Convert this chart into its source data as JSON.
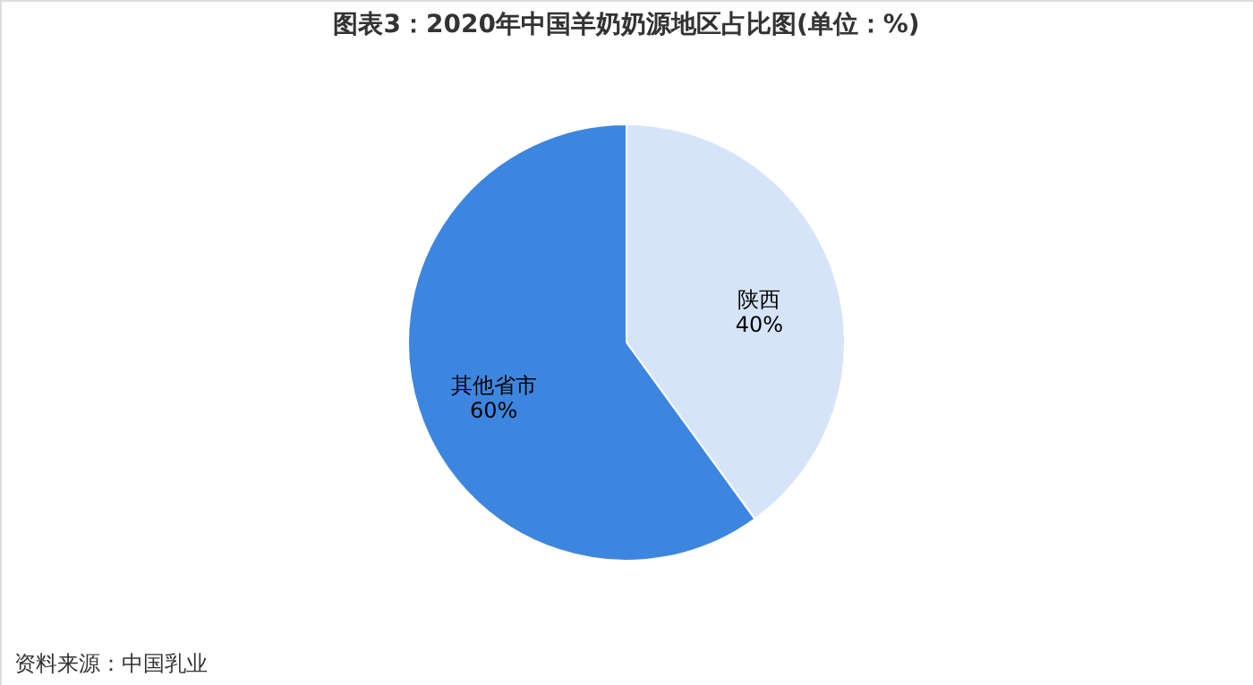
{
  "chart_data": {
    "type": "pie",
    "title": "图表3：2020年中国羊奶奶源地区占比图(单位：%)",
    "categories": [
      "陕西",
      "其他省市"
    ],
    "values": [
      40,
      60
    ],
    "colors": [
      "#d6e4fa",
      "#3d86e0"
    ],
    "value_labels": [
      "40%",
      "60%"
    ],
    "annotations": [
      "资料来源：中国乳业"
    ]
  }
}
